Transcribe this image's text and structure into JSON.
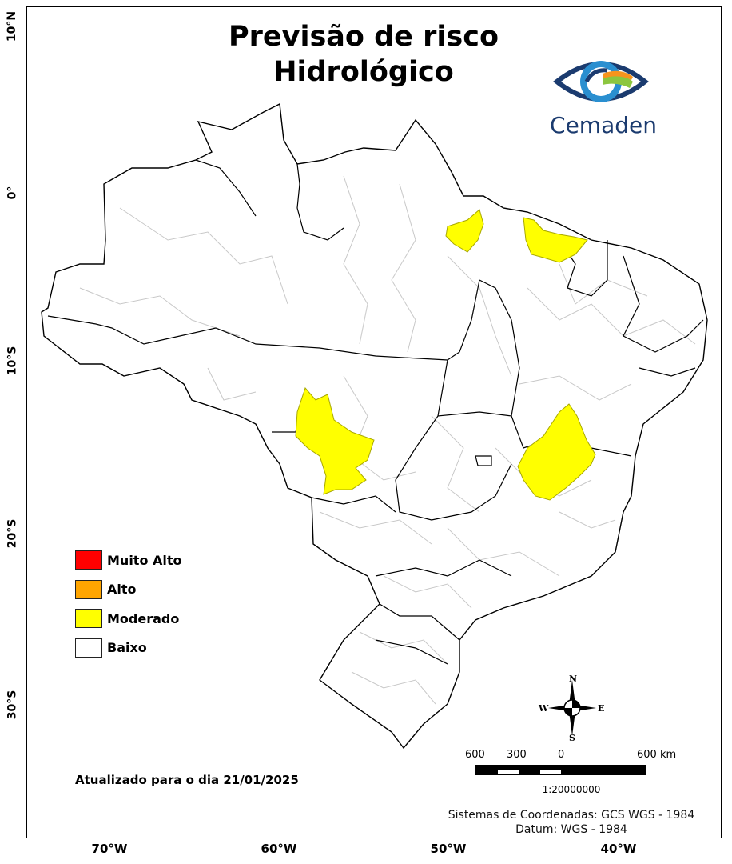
{
  "title": {
    "line1": "Previsão de risco",
    "line2": "Hidrológico"
  },
  "logo": {
    "text": "Cemaden"
  },
  "latitude_labels": [
    "10°N",
    "0°",
    "10°S",
    "20°S",
    "30°S"
  ],
  "longitude_labels": [
    "70°W",
    "60°W",
    "50°W",
    "40°W"
  ],
  "legend": [
    {
      "label": "Muito Alto",
      "color": "#ff0000"
    },
    {
      "label": "Alto",
      "color": "#ffa500"
    },
    {
      "label": "Moderado",
      "color": "#ffff00"
    },
    {
      "label": "Baixo",
      "color": "#ffffff"
    }
  ],
  "updated": "Atualizado para o dia 21/01/2025",
  "compass": {
    "n": "N",
    "s": "S",
    "e": "E",
    "w": "W"
  },
  "scale": {
    "ticks": [
      "600",
      "300",
      "0",
      "600 km"
    ],
    "ratio": "1:20000000"
  },
  "crs": {
    "line1": "Sistemas de Coordenadas: GCS WGS - 1984",
    "line2": "Datum: WGS - 1984"
  }
}
